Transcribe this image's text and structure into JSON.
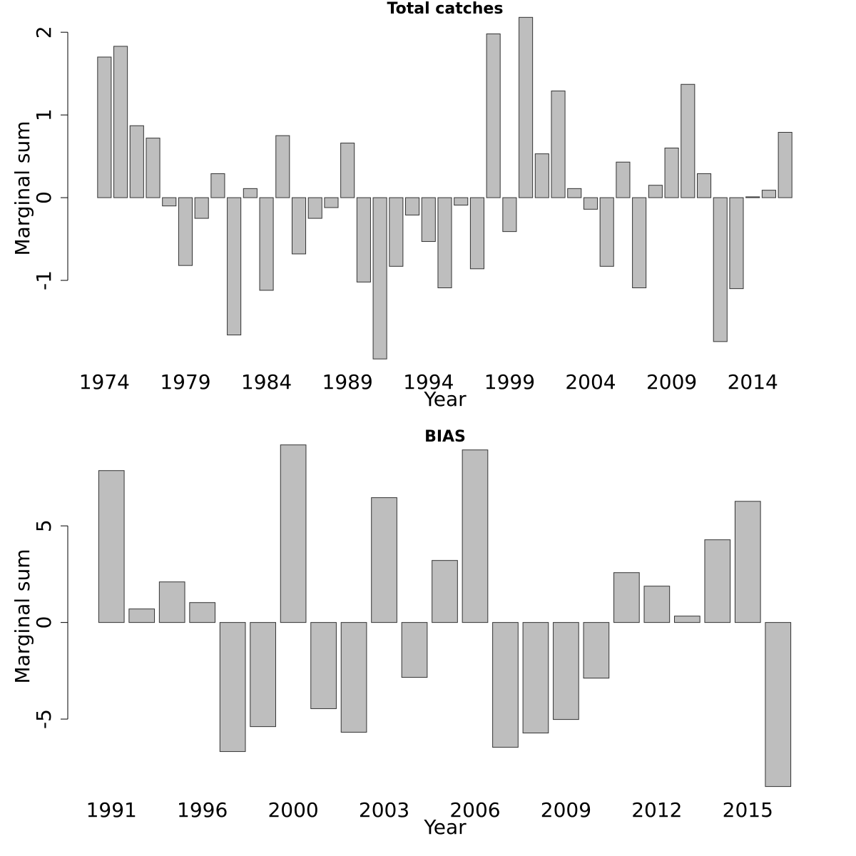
{
  "chart_data": [
    {
      "type": "bar",
      "title": "Total catches",
      "xlabel": "Year",
      "ylabel": "Marginal sum",
      "color": "#bebebe",
      "categories": [
        "1974",
        null,
        null,
        null,
        null,
        "1979",
        null,
        null,
        null,
        null,
        "1984",
        null,
        null,
        null,
        null,
        "1989",
        null,
        null,
        null,
        null,
        "1994",
        null,
        null,
        null,
        null,
        "1999",
        null,
        null,
        null,
        null,
        "2004",
        null,
        null,
        null,
        null,
        "2009",
        null,
        null,
        null,
        null,
        "2014",
        null,
        null
      ],
      "values": [
        1.7,
        1.83,
        0.87,
        0.72,
        -0.1,
        -0.82,
        -0.25,
        0.29,
        -1.66,
        0.11,
        -1.12,
        0.75,
        -0.68,
        -0.25,
        -0.12,
        0.66,
        -1.02,
        -1.95,
        -0.83,
        -0.21,
        -0.53,
        -1.09,
        -0.09,
        -0.86,
        1.98,
        -0.41,
        2.18,
        0.53,
        1.29,
        0.11,
        -0.14,
        -0.83,
        0.43,
        -1.09,
        0.15,
        0.6,
        1.37,
        0.29,
        -1.74,
        -1.1,
        0.01,
        0.09,
        0.79
      ],
      "ylim": [
        -2.0,
        2.2
      ],
      "yticks": [
        -1,
        0,
        1,
        2
      ]
    },
    {
      "type": "bar",
      "title": "BIAS",
      "xlabel": "Year",
      "ylabel": "Marginal sum",
      "color": "#bebebe",
      "categories": [
        "1991",
        null,
        null,
        "1996",
        null,
        null,
        "2000",
        null,
        null,
        "2003",
        null,
        null,
        "2006",
        null,
        null,
        "2009",
        null,
        null,
        "2012",
        null,
        null,
        "2015",
        null
      ],
      "values": [
        7.86,
        0.7,
        2.1,
        1.03,
        -6.68,
        -5.39,
        9.19,
        -4.46,
        -5.68,
        6.46,
        -2.84,
        3.21,
        8.93,
        -6.46,
        -5.72,
        -5.02,
        -2.88,
        2.58,
        1.88,
        0.33,
        4.28,
        6.27,
        -8.49
      ],
      "ylim": [
        -8.8,
        9.4
      ],
      "yticks": [
        -5,
        0,
        5
      ]
    }
  ]
}
